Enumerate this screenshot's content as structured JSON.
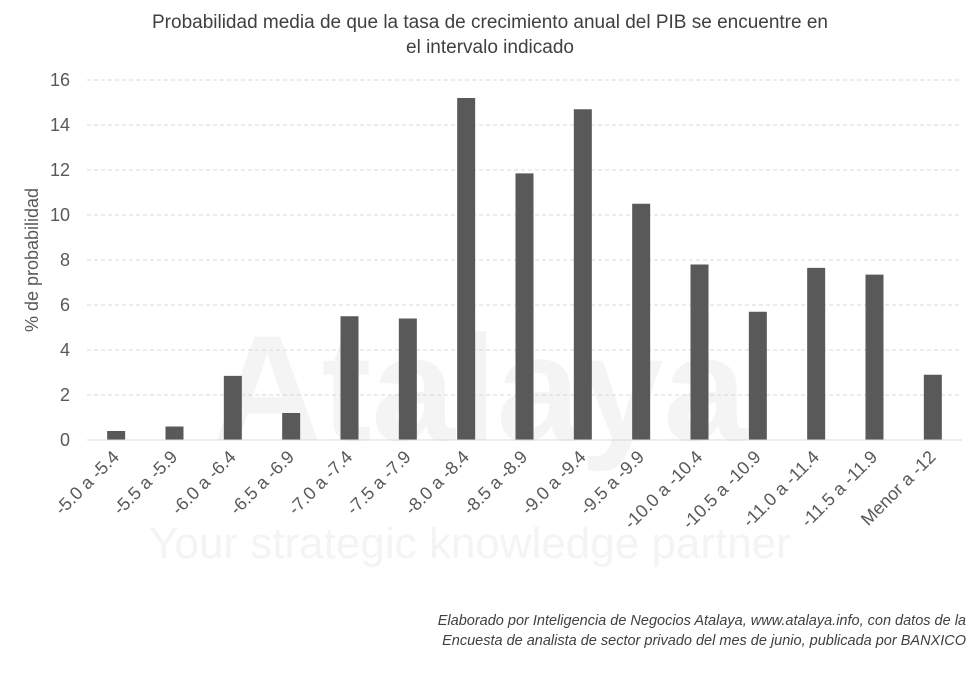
{
  "chart_data": {
    "type": "bar",
    "title_lines": [
      "Probabilidad  media  de  que  la tasa de crecimiento anual del PIB se encuentre en",
      "el intervalo indicado"
    ],
    "ylabel": "% de probabilidad",
    "xlabel": "",
    "ylim": [
      0,
      16
    ],
    "yticks": [
      0,
      2,
      4,
      6,
      8,
      10,
      12,
      14,
      16
    ],
    "grid": true,
    "bar_color": "#595959",
    "categories": [
      "-5.0 a -5.4",
      "-5.5 a -5.9",
      "-6.0 a -6.4",
      "-6.5 a -6.9",
      "-7.0 a -7.4",
      "-7.5 a -7.9",
      "-8.0 a -8.4",
      "-8.5 a -8.9",
      "-9.0 a -9.4",
      "-9.5 a -9.9",
      "-10.0 a -10.4",
      "-10.5 a -10.9",
      "-11.0 a -11.4",
      "-11.5 a -11.9",
      "Menor a -12"
    ],
    "values": [
      0.4,
      0.6,
      2.85,
      1.2,
      5.5,
      5.4,
      15.2,
      11.85,
      14.7,
      10.5,
      7.8,
      5.7,
      7.65,
      7.35,
      2.9
    ]
  },
  "watermark": {
    "brand": "Atalaya",
    "tagline": "Your strategic knowledge partner"
  },
  "source_lines": [
    "Elaborado por Inteligencia de Negocios Atalaya, www.atalaya.info,  con datos de la",
    "Encuesta de analista de sector privado del mes de junio, publicada por BANXICO"
  ]
}
